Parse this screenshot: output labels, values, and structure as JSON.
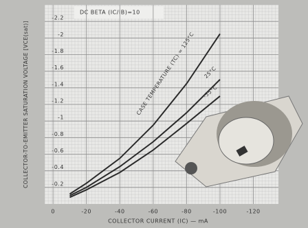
{
  "chart_data": {
    "type": "line",
    "title": "DC BETA (IC/IB)=10",
    "x_label": "COLLECTOR CURRENT (IC) — mA",
    "y_label": "COLLECTOR-TO-EMITTER SATURATION VOLTAGE [VCE(sat)]",
    "x": [
      -10,
      -20,
      -40,
      -60,
      -80,
      -100
    ],
    "series": [
      {
        "name": "CASE TEMPERATURE (TC) = 125°C",
        "color": "#2a2a2a",
        "values": [
          -0.12,
          -0.25,
          -0.55,
          -0.95,
          -1.45,
          -2.05
        ]
      },
      {
        "name": "25°C",
        "color": "#2a2a2a",
        "values": [
          -0.1,
          -0.2,
          -0.45,
          -0.75,
          -1.1,
          -1.5
        ]
      },
      {
        "name": "-55°C",
        "color": "#2a2a2a",
        "values": [
          -0.08,
          -0.17,
          -0.38,
          -0.65,
          -0.97,
          -1.3
        ]
      }
    ],
    "xlim": [
      5,
      -135
    ],
    "xticks": [
      0,
      -20,
      -40,
      -60,
      -80,
      -100,
      -120
    ],
    "ylim": [
      0,
      -2.4
    ],
    "yticks": [
      -0.2,
      -0.4,
      -0.6,
      -0.8,
      -1,
      -1.2,
      -1.4,
      -1.6,
      -1.8,
      -2,
      -2.2
    ],
    "grid": true
  }
}
